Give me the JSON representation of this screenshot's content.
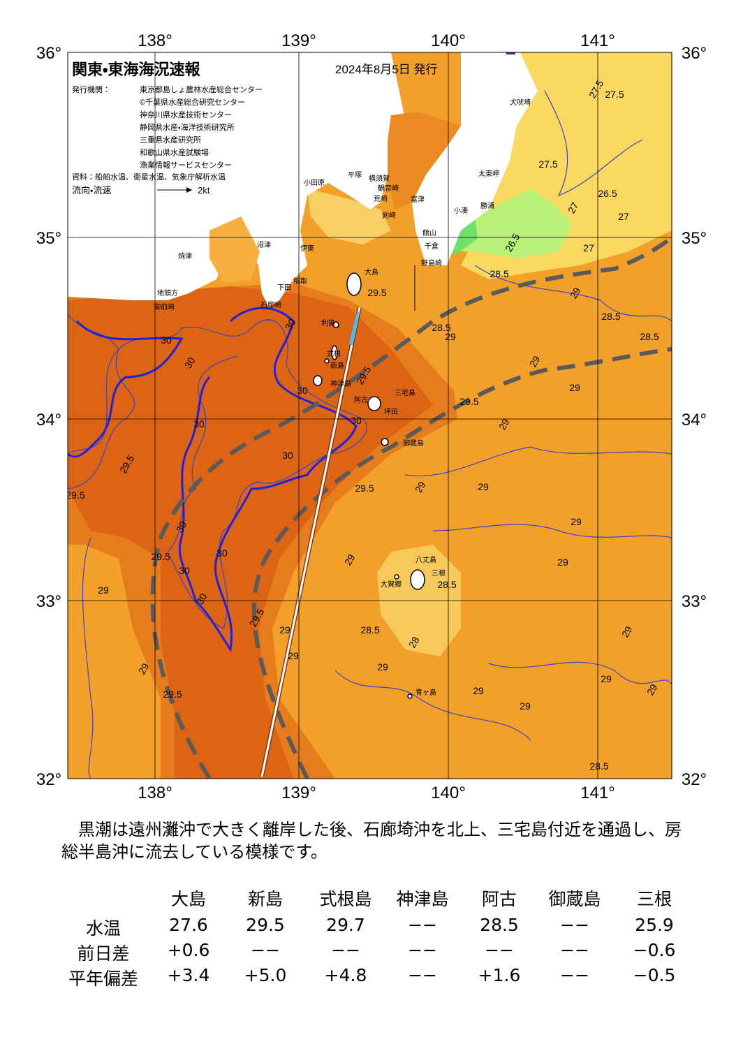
{
  "header": {
    "title": "関東・東海海況速報",
    "date": "2024年8月5日 発行",
    "issuers_label": "発行機関：",
    "issuers": [
      "東京都島しょ農林水産総合センター",
      "©千葉県水産総合研究センター",
      "神奈川県水産技術センター",
      "静岡県水産・海洋技術研究所",
      "三重県水産研究所",
      "和歌山県水産試験場",
      "漁業情報サービスセンター"
    ],
    "source": "資料：船舶水温、衛星水温、気象庁解析水温",
    "legend_label": "流向・流速",
    "legend_scale": "2kt"
  },
  "map": {
    "lon_labels": [
      "138°",
      "139°",
      "140°",
      "141°"
    ],
    "lat_labels": [
      "36°",
      "35°",
      "34°",
      "33°",
      "32°"
    ],
    "place_labels": [
      "大島",
      "利島",
      "新島",
      "式根",
      "神津島",
      "三宅島",
      "阿古",
      "坪田",
      "御蔵島",
      "八丈島",
      "三根",
      "大賀郷",
      "青ヶ島",
      "小田原",
      "平塚",
      "横須賀",
      "観音崎",
      "荒崎",
      "剣崎",
      "富津",
      "館山",
      "千倉",
      "野島崎",
      "小湊",
      "勝浦",
      "太東岬",
      "犬吠埼",
      "沼津",
      "伊東",
      "焼津",
      "稲取",
      "下田",
      "石廊崎",
      "御前崎",
      "地頭方"
    ],
    "contour_labels": [
      "27.5",
      "27.5",
      "27.5",
      "27",
      "26.5",
      "27",
      "26.5",
      "27",
      "28.5",
      "29",
      "28.5",
      "28.5",
      "29",
      "28.5",
      "29",
      "29.5",
      "29",
      "29.5",
      "29",
      "30",
      "30",
      "30",
      "29.5",
      "30",
      "30",
      "30",
      "30",
      "29.5",
      "29.5",
      "29.5",
      "29",
      "29",
      "29",
      "30",
      "30",
      "29",
      "29",
      "29.5",
      "30",
      "30",
      "29",
      "28.5",
      "29.5",
      "29",
      "28.5",
      "28",
      "29",
      "29",
      "29",
      "29.5",
      "29",
      "29",
      "29",
      "29",
      "29",
      "28.5"
    ]
  },
  "description": "　黒潮は遠州灘沖で大きく離岸した後、石廊埼沖を北上、三宅島付近を通過し、房総半島沖に流去している模様です。",
  "table": {
    "columns": [
      "大島",
      "新島",
      "式根島",
      "神津島",
      "阿古",
      "御蔵島",
      "三根"
    ],
    "rows": [
      {
        "label": "水温",
        "values": [
          "27.6",
          "29.5",
          "29.7",
          "−−",
          "28.5",
          "−−",
          "25.9"
        ]
      },
      {
        "label": "前日差",
        "values": [
          "+0.6",
          "−−",
          "−−",
          "−−",
          "−−",
          "−−",
          "−0.6"
        ]
      },
      {
        "label": "平年偏差",
        "values": [
          "+3.4",
          "+5.0",
          "+4.8",
          "−−",
          "+1.6",
          "−−",
          "−0.5"
        ]
      }
    ]
  }
}
